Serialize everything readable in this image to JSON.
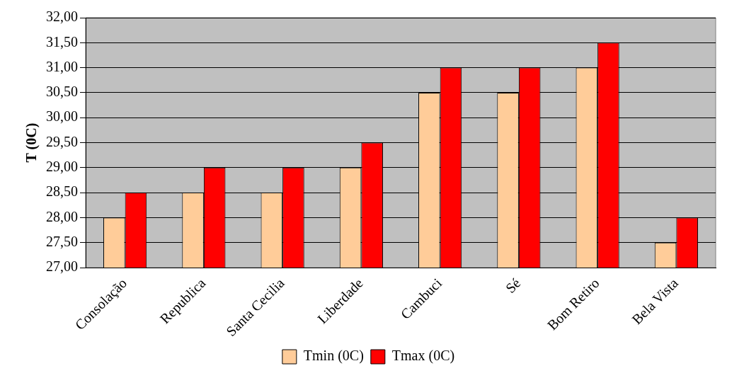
{
  "chart_data": {
    "type": "bar",
    "ylabel": "T (0C)",
    "categories": [
      "Consolação",
      "Republica",
      "Santa Cecilia",
      "Liberdade",
      "Cambuci",
      "Sé",
      "Bom Retiro",
      "Bela Vista"
    ],
    "series": [
      {
        "name": "Tmin (0C)",
        "color": "#ffcc99",
        "values": [
          28,
          28.5,
          28.5,
          29,
          30.5,
          30.5,
          31,
          27.5
        ]
      },
      {
        "name": "Tmax (0C)",
        "color": "#ff0000",
        "values": [
          28.5,
          29,
          29,
          29.5,
          31,
          31,
          31.5,
          28
        ]
      }
    ],
    "ylim": [
      27,
      32
    ],
    "yticks": [
      {
        "value": 27,
        "label": "27,00"
      },
      {
        "value": 27.5,
        "label": "27,50"
      },
      {
        "value": 28,
        "label": "28,00"
      },
      {
        "value": 28.5,
        "label": "28,50"
      },
      {
        "value": 29,
        "label": "29,00"
      },
      {
        "value": 29.5,
        "label": "29,50"
      },
      {
        "value": 30,
        "label": "30,00"
      },
      {
        "value": 30.5,
        "label": "30,50"
      },
      {
        "value": 31,
        "label": "31,00"
      },
      {
        "value": 31.5,
        "label": "31,50"
      },
      {
        "value": 32,
        "label": "32,00"
      }
    ],
    "grid": "y",
    "legend": "bottom"
  }
}
